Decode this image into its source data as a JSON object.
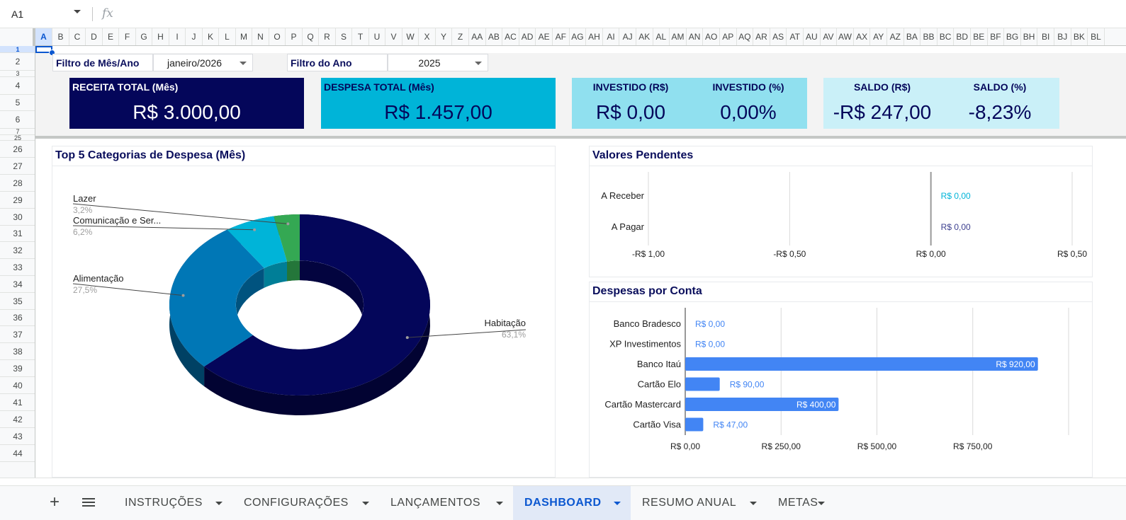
{
  "formula_bar": {
    "cell_ref": "A1",
    "fx": "fx",
    "formula": ""
  },
  "columns": [
    "A",
    "B",
    "C",
    "D",
    "E",
    "F",
    "G",
    "H",
    "I",
    "J",
    "K",
    "L",
    "M",
    "N",
    "O",
    "P",
    "Q",
    "R",
    "S",
    "T",
    "U",
    "V",
    "W",
    "X",
    "Y",
    "Z",
    "AA",
    "AB",
    "AC",
    "AD",
    "AE",
    "AF",
    "AG",
    "AH",
    "AI",
    "AJ",
    "AK",
    "AL",
    "AM",
    "AN",
    "AO",
    "AP",
    "AQ",
    "AR",
    "AS",
    "AT",
    "AU",
    "AV",
    "AW",
    "AX",
    "AY",
    "AZ",
    "BA",
    "BB",
    "BC",
    "BD",
    "BE",
    "BF",
    "BG",
    "BH",
    "BI",
    "BJ",
    "BK",
    "BL"
  ],
  "rows": [
    "1",
    "2",
    "3",
    "4",
    "5",
    "6",
    "7",
    "25",
    "26",
    "27",
    "28",
    "29",
    "30",
    "31",
    "32",
    "33",
    "34",
    "35",
    "36",
    "37",
    "38",
    "39",
    "40",
    "41",
    "42",
    "43",
    "44"
  ],
  "filters": {
    "month_label": "Filtro de Mês/Ano",
    "month_value": "janeiro/2026",
    "year_label": "Filtro do Ano",
    "year_value": "2025"
  },
  "kpis": {
    "receita_title": "RECEITA TOTAL (Mês)",
    "receita_value": "R$ 3.000,00",
    "despesa_title": "DESPESA TOTAL (Mês)",
    "despesa_value": "R$ 1.457,00",
    "investido_title": "INVESTIDO (R$)",
    "investido_value": "R$ 0,00",
    "investido_pct_title": "INVESTIDO (%)",
    "investido_pct_value": "0,00%",
    "saldo_title": "SALDO (R$)",
    "saldo_value": "-R$ 247,00",
    "saldo_pct_title": "SALDO (%)",
    "saldo_pct_value": "-8,23%"
  },
  "colors": {
    "navy": "#04065a",
    "cyan": "#00b4d8",
    "light_cyan": "#90e0ef",
    "pale_cyan": "#caf0f8",
    "blue_bar": "#4285f4",
    "green": "#34a853",
    "mid_blue": "#0077b6"
  },
  "chart_data": [
    {
      "type": "pie",
      "title": "Top 5 Categorias de Despesa (Mês)",
      "style": "3d-donut",
      "slices": [
        {
          "label": "Habitação",
          "pct_label": "63,1%",
          "value": 63.1,
          "color": "#04065a"
        },
        {
          "label": "Alimentação",
          "pct_label": "27,5%",
          "value": 27.5,
          "color": "#0077b6"
        },
        {
          "label": "Comunicação e Ser...",
          "pct_label": "6,2%",
          "value": 6.2,
          "color": "#00b4d8"
        },
        {
          "label": "Lazer",
          "pct_label": "3,2%",
          "value": 3.2,
          "color": "#34a853"
        }
      ]
    },
    {
      "type": "bar",
      "orientation": "horizontal",
      "title": "Valores Pendentes",
      "categories": [
        "A Receber",
        "A Pagar"
      ],
      "values": [
        0,
        0
      ],
      "value_labels": [
        "R$ 0,00",
        "R$ 0,00"
      ],
      "label_colors": [
        "#00b4d8",
        "#3c3f8f"
      ],
      "xlim": [
        -1,
        0.5
      ],
      "x_ticks": [
        -1,
        -0.5,
        0,
        0.5
      ],
      "x_tick_labels": [
        "-R$ 1,00",
        "-R$ 0,50",
        "R$ 0,00",
        "R$ 0,50"
      ]
    },
    {
      "type": "bar",
      "orientation": "horizontal",
      "title": "Despesas por Conta",
      "categories": [
        "Banco Bradesco",
        "XP Investimentos",
        "Banco Itaú",
        "Cartão Elo",
        "Cartão Mastercard",
        "Cartão Visa"
      ],
      "values": [
        0,
        0,
        920,
        90,
        400,
        47
      ],
      "value_labels": [
        "R$ 0,00",
        "R$ 0,00",
        "R$ 920,00",
        "R$ 90,00",
        "R$ 400,00",
        "R$ 47,00"
      ],
      "xlim": [
        0,
        1000
      ],
      "x_ticks": [
        0,
        250,
        500,
        750
      ],
      "x_tick_labels": [
        "R$ 0,00",
        "R$ 250,00",
        "R$ 500,00",
        "R$ 750,00"
      ],
      "color": "#4285f4"
    }
  ],
  "tabs": {
    "add": "+",
    "items": [
      {
        "label": "INSTRUÇÕES",
        "active": false
      },
      {
        "label": "CONFIGURAÇÕES",
        "active": false
      },
      {
        "label": "LANÇAMENTOS",
        "active": false
      },
      {
        "label": "DASHBOARD",
        "active": true
      },
      {
        "label": "RESUMO ANUAL",
        "active": false
      },
      {
        "label": "METAS",
        "active": false
      }
    ]
  },
  "icons": {
    "add_sheet": "plus-icon",
    "all_sheets": "menu-icon",
    "fx": "function-icon",
    "dropdown": "caret-down-icon"
  }
}
